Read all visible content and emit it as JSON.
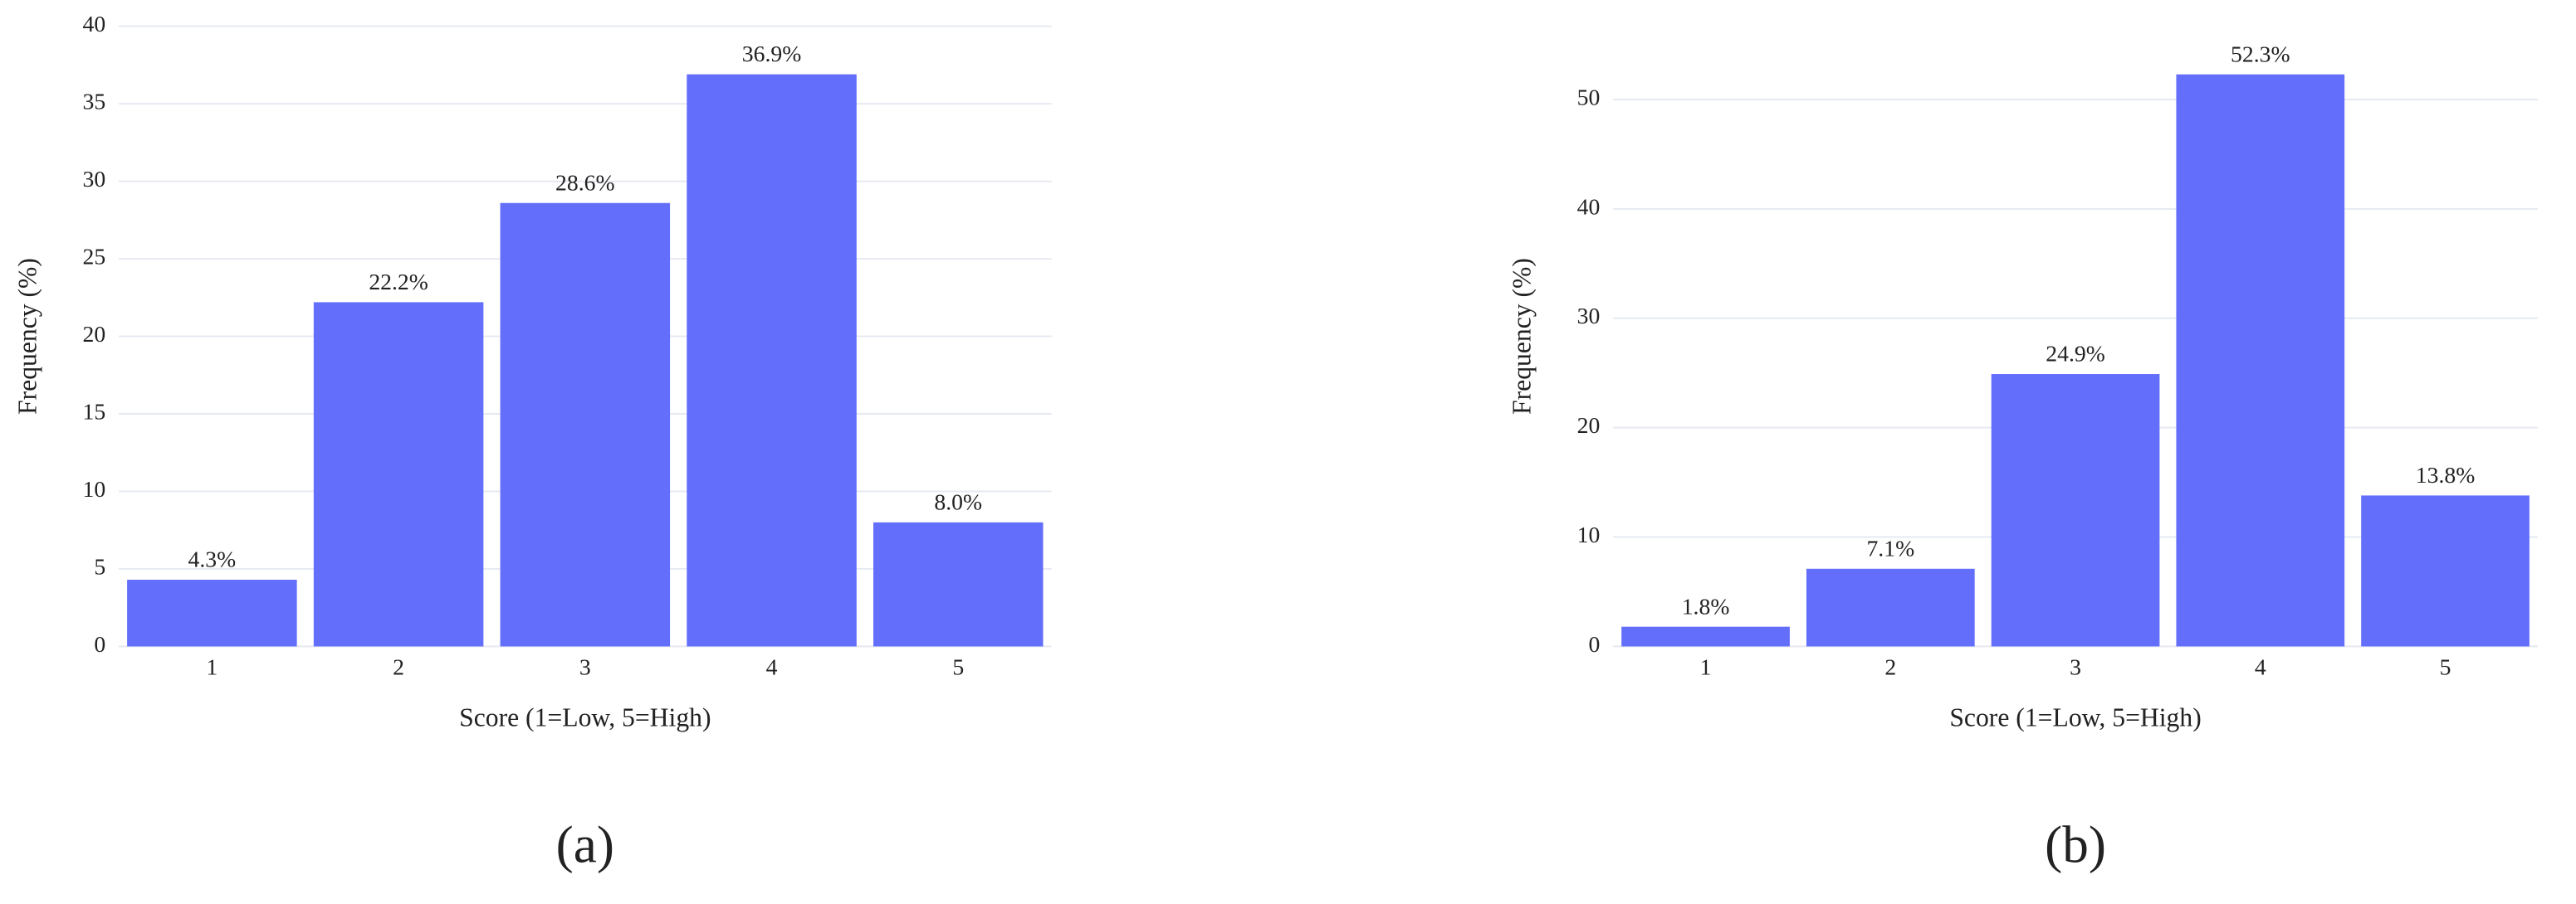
{
  "chart_data": [
    {
      "type": "bar",
      "caption": "(a)",
      "x_label": "Score (1=Low, 5=High)",
      "y_label": "Frequency (%)",
      "categories": [
        "1",
        "2",
        "3",
        "4",
        "5"
      ],
      "values": [
        4.3,
        22.2,
        28.6,
        36.9,
        8.0
      ],
      "value_labels": [
        "4.3%",
        "22.2%",
        "28.6%",
        "36.9%",
        "8.0%"
      ],
      "color": "#636efa",
      "ylim": [
        0,
        40
      ],
      "yticks": [
        0,
        5,
        10,
        15,
        20,
        25,
        30,
        35,
        40
      ],
      "grid": true
    },
    {
      "type": "bar",
      "caption": "(b)",
      "x_label": "Score (1=Low, 5=High)",
      "y_label": "Frequency (%)",
      "categories": [
        "1",
        "2",
        "3",
        "4",
        "5"
      ],
      "values": [
        1.8,
        7.1,
        24.9,
        52.3,
        13.8
      ],
      "value_labels": [
        "1.8%",
        "7.1%",
        "24.9%",
        "52.3%",
        "13.8%"
      ],
      "color": "#636efa",
      "ylim": [
        0,
        56.7
      ],
      "yticks": [
        0,
        10,
        20,
        30,
        40,
        50
      ],
      "grid": true
    }
  ]
}
